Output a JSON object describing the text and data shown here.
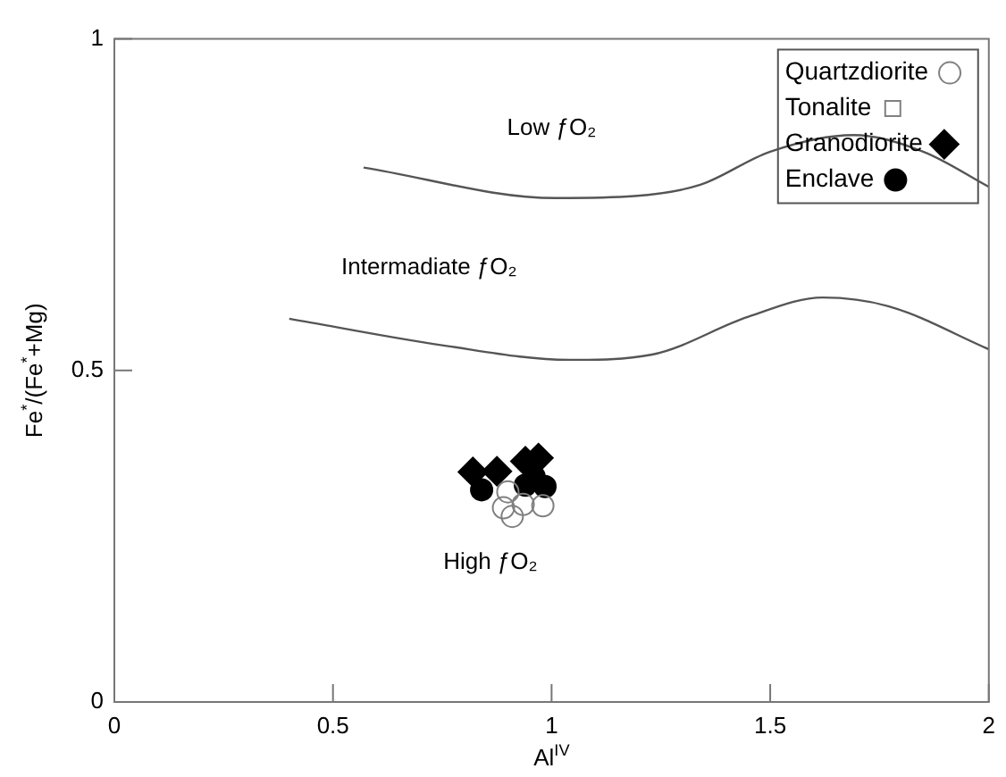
{
  "chart_data": {
    "type": "scatter",
    "xlabel": "Al$^{IV}$",
    "ylabel": "Fe$^{*}$/(Fe$^{*}$+Mg)",
    "xlim": [
      0,
      2
    ],
    "ylim": [
      0,
      1
    ],
    "xticks": [
      0,
      0.5,
      1,
      1.5,
      2
    ],
    "yticks": [
      0,
      0.5,
      1
    ],
    "grid": false,
    "legend": "top right",
    "series": [
      {
        "name": "Quartzdiorite",
        "color": "#808080",
        "marker": "circle",
        "x": [
          0.9,
          0.89,
          0.91,
          0.935,
          0.98
        ],
        "values": [
          0.317,
          0.293,
          0.28,
          0.298,
          0.296
        ]
      },
      {
        "name": "Tonalite",
        "color": "#808080",
        "marker": "square"
      },
      {
        "name": "Granodiorite",
        "color": "#000000",
        "marker": "diamond",
        "x": [
          0.82,
          0.875,
          0.94,
          0.97
        ],
        "values": [
          0.347,
          0.348,
          0.363,
          0.368
        ]
      },
      {
        "name": "Enclave",
        "color": "#000000",
        "marker": "circle",
        "x": [
          0.84,
          0.94,
          0.985,
          0.96
        ],
        "values": [
          0.32,
          0.327,
          0.325,
          0.34
        ]
      },
      {
        "type": "line",
        "color": "#555555",
        "marker": "none",
        "x": [
          0.57,
          1.01,
          1.19,
          1.34,
          1.5,
          1.69,
          1.85,
          2.0
        ],
        "values": [
          0.806,
          0.76,
          0.763,
          0.78,
          0.83,
          0.855,
          0.83,
          0.777
        ]
      },
      {
        "type": "line",
        "color": "#555555",
        "marker": "none",
        "x": [
          0.4,
          0.75,
          1.04,
          1.23,
          1.45,
          1.62,
          1.77,
          2.0
        ],
        "values": [
          0.578,
          0.538,
          0.516,
          0.524,
          0.581,
          0.61,
          0.597,
          0.532
        ]
      }
    ],
    "annotations": [
      "Low ƒO₂",
      "Intermadiate ƒO₂",
      "High ƒO₂"
    ]
  }
}
